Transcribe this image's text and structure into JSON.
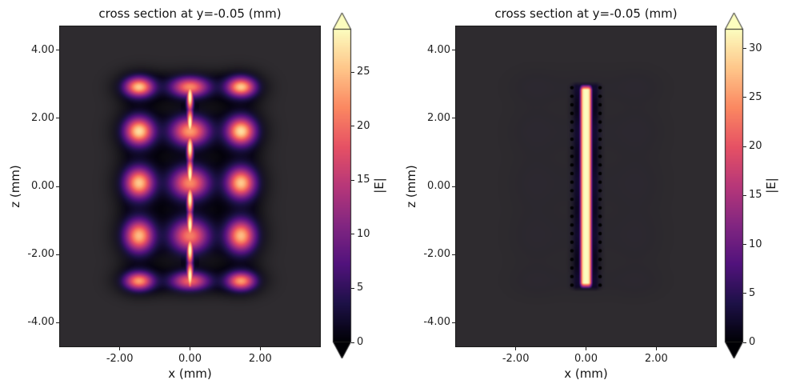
{
  "figure_background": "#ffffff",
  "text_color": "#141414",
  "colormap_name": "magma",
  "colormap_stops": [
    [
      0.0,
      "#000004"
    ],
    [
      0.125,
      "#1d1147"
    ],
    [
      0.25,
      "#51127c"
    ],
    [
      0.375,
      "#822681"
    ],
    [
      0.5,
      "#b73779"
    ],
    [
      0.625,
      "#e65164"
    ],
    [
      0.75,
      "#fb8861"
    ],
    [
      0.875,
      "#fec68a"
    ],
    [
      1.0,
      "#fcfdbf"
    ]
  ],
  "chart_data": [
    {
      "type": "heatmap",
      "title": "cross section at y=-0.05 (mm)",
      "xlabel": "x (mm)",
      "ylabel": "z (mm)",
      "xlim": [
        -3.7,
        3.7
      ],
      "zlim": [
        -4.7,
        4.7
      ],
      "xticks": [
        {
          "v": -2,
          "label": "-2.00"
        },
        {
          "v": 0,
          "label": "0.00"
        },
        {
          "v": 2,
          "label": "2.00"
        }
      ],
      "zticks": [
        {
          "v": 4,
          "label": "4.00"
        },
        {
          "v": 2,
          "label": "2.00"
        },
        {
          "v": 0,
          "label": "0.00"
        },
        {
          "v": -2,
          "label": "-2.00"
        },
        {
          "v": -4,
          "label": "-4.00"
        }
      ],
      "colorbar": {
        "label": "|E|",
        "vmin": 0,
        "vmax": 29,
        "extend": "both",
        "ticks": [
          {
            "v": 0,
            "label": "0"
          },
          {
            "v": 5,
            "label": "5"
          },
          {
            "v": 10,
            "label": "10"
          },
          {
            "v": 15,
            "label": "15"
          },
          {
            "v": 20,
            "label": "20"
          },
          {
            "v": 25,
            "label": "25"
          }
        ]
      },
      "heatmap": {
        "background_color": "#2e2b2f",
        "peak_E": 27,
        "x_lobes": [
          {
            "center": -1.45,
            "sigma": 0.4,
            "amp": 1.0
          },
          {
            "center": 0.0,
            "sigma": 0.52,
            "amp": 0.85
          },
          {
            "center": 1.45,
            "sigma": 0.4,
            "amp": 1.0
          }
        ],
        "z_lobes": [
          {
            "center": 2.92,
            "sigma": 0.28,
            "amp": 0.95
          },
          {
            "center": 1.62,
            "sigma": 0.4,
            "amp": 1.0
          },
          {
            "center": 0.1,
            "sigma": 0.44,
            "amp": 0.95
          },
          {
            "center": -1.45,
            "sigma": 0.46,
            "amp": 0.92
          },
          {
            "center": -2.78,
            "sigma": 0.26,
            "amp": 0.85
          }
        ],
        "center_line": {
          "x": 0.0,
          "half_width": 0.09,
          "z_min": -3.05,
          "z_max": 3.05,
          "peak_E": 30,
          "dash_node_spacing": 0.75,
          "dash_min": 0.5
        }
      }
    },
    {
      "type": "heatmap",
      "title": "cross section at y=-0.05 (mm)",
      "xlabel": "x (mm)",
      "ylabel": "z (mm)",
      "xlim": [
        -3.7,
        3.7
      ],
      "zlim": [
        -4.7,
        4.7
      ],
      "xticks": [
        {
          "v": -2,
          "label": "-2.00"
        },
        {
          "v": 0,
          "label": "0.00"
        },
        {
          "v": 2,
          "label": "2.00"
        }
      ],
      "zticks": [
        {
          "v": 4,
          "label": "4.00"
        },
        {
          "v": 2,
          "label": "2.00"
        },
        {
          "v": 0,
          "label": "0.00"
        },
        {
          "v": -2,
          "label": "-2.00"
        },
        {
          "v": -4,
          "label": "-4.00"
        }
      ],
      "colorbar": {
        "label": "|E|",
        "vmin": 0,
        "vmax": 32,
        "extend": "both",
        "ticks": [
          {
            "v": 0,
            "label": "0"
          },
          {
            "v": 5,
            "label": "5"
          },
          {
            "v": 10,
            "label": "10"
          },
          {
            "v": 15,
            "label": "15"
          },
          {
            "v": 20,
            "label": "20"
          },
          {
            "v": 25,
            "label": "25"
          },
          {
            "v": 30,
            "label": "30"
          }
        ]
      },
      "heatmap": {
        "background_color": "#2e2b2f",
        "bar": {
          "x": 0.0,
          "half_width": 0.16,
          "z_min": -2.97,
          "z_max": 2.97,
          "peak_E": 32
        },
        "ghost": {
          "of_panel": 0,
          "opacity": 0.09,
          "level": 0.1
        },
        "dots": {
          "x_columns": [
            -0.4,
            0.4
          ],
          "z_min": -2.9,
          "z_max": 2.9,
          "count_per_column": 24,
          "radius_px": 2.2,
          "color": "#000000"
        }
      }
    }
  ]
}
